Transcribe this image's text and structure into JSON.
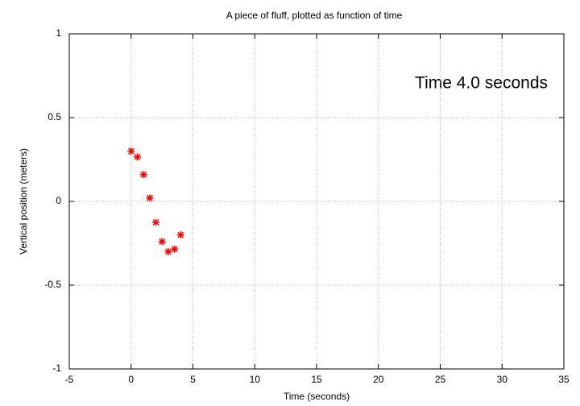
{
  "chart_data": {
    "type": "scatter",
    "title": "A piece of fluff, plotted as function of time",
    "xlabel": "Time (seconds)",
    "ylabel": "Vertical position (meters)",
    "annotation": "Time  4.0 seconds",
    "series": [
      {
        "color": "#ff0000",
        "x": [
          0,
          0.5,
          1.0,
          1.5,
          2.0,
          2.5,
          3.0,
          3.5,
          4.0
        ],
        "values": [
          0.3,
          0.265,
          0.16,
          0.02,
          -0.125,
          -0.24,
          -0.3,
          -0.285,
          -0.2
        ]
      }
    ],
    "xlim": [
      -5,
      35
    ],
    "xticks": [
      -5,
      0,
      5,
      10,
      15,
      20,
      25,
      30,
      35
    ],
    "ylim": [
      -1,
      1
    ],
    "yticks": [
      -1,
      -0.5,
      0,
      0.5,
      1
    ],
    "grid": true
  }
}
